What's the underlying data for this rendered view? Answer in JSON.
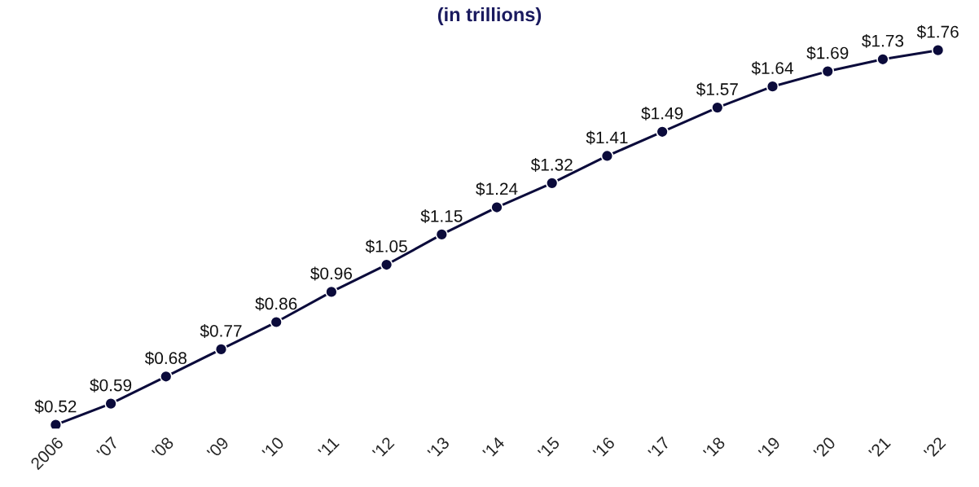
{
  "chart_data": {
    "type": "line",
    "title": "(in trillions)",
    "categories": [
      "2006",
      "'07",
      "'08",
      "'09",
      "'10",
      "'11",
      "'12",
      "'13",
      "'14",
      "'15",
      "'16",
      "'17",
      "'18",
      "'19",
      "'20",
      "'21",
      "'22"
    ],
    "series": [
      {
        "color": "#0b0b3b",
        "values": [
          0.52,
          0.59,
          0.68,
          0.77,
          0.86,
          0.96,
          1.05,
          1.15,
          1.24,
          1.32,
          1.41,
          1.49,
          1.57,
          1.64,
          1.69,
          1.73,
          1.76
        ],
        "value_labels": [
          "$0.52",
          "$0.59",
          "$0.68",
          "$0.77",
          "$0.86",
          "$0.96",
          "$1.05",
          "$1.15",
          "$1.24",
          "$1.32",
          "$1.41",
          "$1.49",
          "$1.57",
          "$1.64",
          "$1.69",
          "$1.73",
          "$1.76"
        ]
      }
    ],
    "marker": "circle",
    "line_style": "solid",
    "grid": false,
    "legend": false
  }
}
